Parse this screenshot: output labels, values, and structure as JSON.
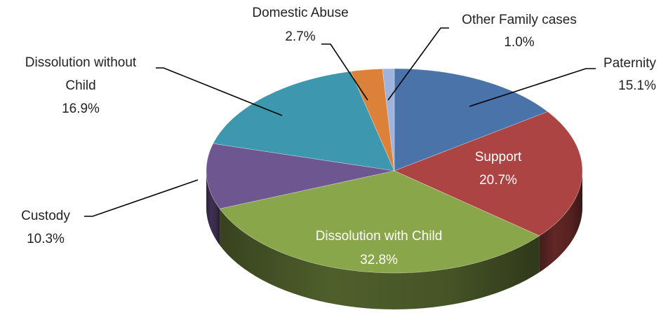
{
  "chart_data": {
    "type": "pie",
    "title": "",
    "style": "3d-exploded-none",
    "slices": [
      {
        "label": "Paternity",
        "value": 15.1,
        "value_label": "15.1%",
        "color": "#4a73aa",
        "label_inside": false
      },
      {
        "label": "Support",
        "value": 20.7,
        "value_label": "20.7%",
        "color": "#ab4442",
        "label_inside": true
      },
      {
        "label": "Dissolution with Child",
        "value": 32.8,
        "value_label": "32.8%",
        "color": "#8aa64b",
        "label_inside": true
      },
      {
        "label": "Custody",
        "value": 10.3,
        "value_label": "10.3%",
        "color": "#6e5690",
        "label_inside": false
      },
      {
        "label": "Dissolution without Child",
        "value": 16.9,
        "value_label": "16.9%",
        "color": "#3d97ae",
        "label_inside": false
      },
      {
        "label": "Domestic Abuse",
        "value": 2.7,
        "value_label": "2.7%",
        "color": "#db8139",
        "label_inside": false
      },
      {
        "label": "Other Family cases",
        "value": 1.0,
        "value_label": "1.0%",
        "color": "#9fb4dc",
        "label_inside": false
      }
    ]
  }
}
